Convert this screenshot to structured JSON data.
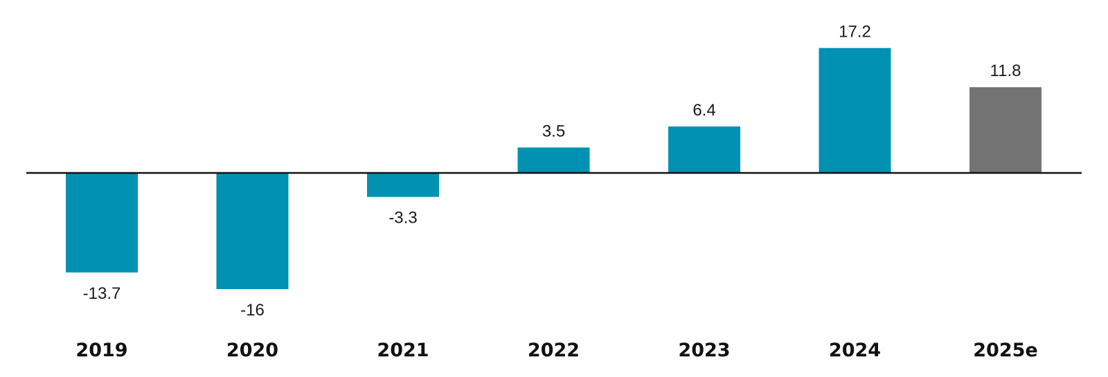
{
  "chart_data": {
    "type": "bar",
    "title": "",
    "xlabel": "",
    "ylabel": "",
    "categories": [
      "2019",
      "2020",
      "2021",
      "2022",
      "2023",
      "2024",
      "2025e"
    ],
    "values": [
      -13.7,
      -16,
      -3.3,
      3.5,
      6.4,
      17.2,
      11.8
    ],
    "value_labels": [
      "-13.7",
      "-16",
      "-3.3",
      "3.5",
      "6.4",
      "17.2",
      "11.8"
    ],
    "bar_colors": [
      "#0091b3",
      "#0091b3",
      "#0091b3",
      "#0091b3",
      "#0091b3",
      "#0091b3",
      "#737373"
    ],
    "ylim": [
      -16,
      17.2
    ],
    "grid": false,
    "legend": "none"
  }
}
